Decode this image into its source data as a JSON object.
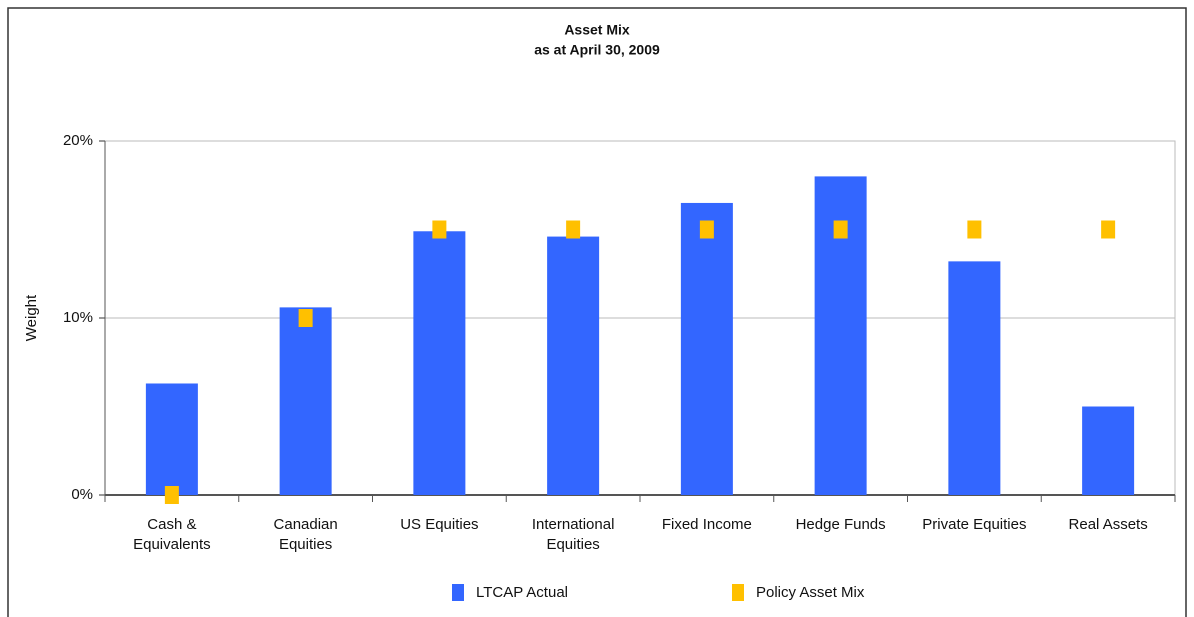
{
  "chart_data": {
    "type": "bar",
    "title": "Asset Mix",
    "subtitle": "as at April 30, 2009",
    "y_label": "Weight",
    "categories": [
      "Cash & Equivalents",
      "Canadian Equities",
      "US Equities",
      "International Equities",
      "Fixed Income",
      "Hedge Funds",
      "Private Equities",
      "Real Assets"
    ],
    "series": [
      {
        "name": "LTCAP Actual",
        "type": "bar",
        "color": "#3366ff",
        "values": [
          6.3,
          10.6,
          14.9,
          14.6,
          16.5,
          18.0,
          13.2,
          5.0
        ]
      },
      {
        "name": "Policy Asset Mix",
        "type": "marker",
        "color": "#ffc000",
        "values": [
          0,
          10,
          15,
          15,
          15,
          15,
          15,
          15
        ]
      }
    ],
    "ylim": [
      0,
      20
    ],
    "yticks": [
      {
        "value": 0,
        "label": "0%"
      },
      {
        "value": 10,
        "label": "10%"
      },
      {
        "value": 20,
        "label": "20%"
      }
    ],
    "grid": true,
    "legend": "bottom"
  }
}
